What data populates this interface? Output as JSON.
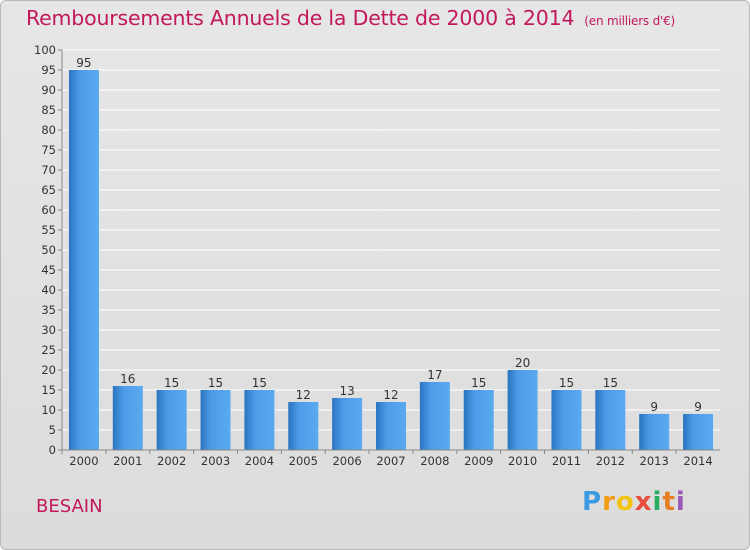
{
  "header": {
    "title": "Remboursements Annuels de la Dette de 2000 à 2014",
    "subtitle": "(en milliers d'€)"
  },
  "footer": {
    "place": "BESAIN",
    "logo_text": "Proxiti"
  },
  "colors": {
    "accent": "#c2185b",
    "bar_top": "#5aaaf0",
    "bar_bottom": "#2a74c0"
  },
  "chart_data": {
    "type": "bar",
    "title": "Remboursements Annuels de la Dette de 2000 à 2014",
    "subtitle": "(en milliers d'€)",
    "xlabel": "",
    "ylabel": "",
    "ylim": [
      0,
      100
    ],
    "ytick_step": 5,
    "grid": true,
    "categories": [
      "2000",
      "2001",
      "2002",
      "2003",
      "2004",
      "2005",
      "2006",
      "2007",
      "2008",
      "2009",
      "2010",
      "2011",
      "2012",
      "2013",
      "2014"
    ],
    "values": [
      95,
      16,
      15,
      15,
      15,
      12,
      13,
      12,
      17,
      15,
      20,
      15,
      15,
      9,
      9
    ]
  }
}
